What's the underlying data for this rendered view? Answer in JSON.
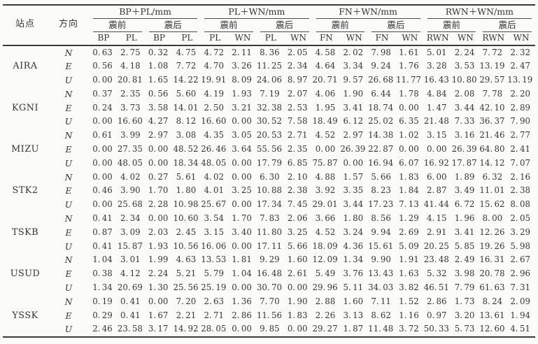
{
  "table": {
    "col_station": "站点",
    "col_direction": "方向",
    "groups": [
      {
        "title": "BP＋PL/mm",
        "pre": "震前",
        "post": "震后",
        "subcols": [
          "BP",
          "PL",
          "BP",
          "PL"
        ]
      },
      {
        "title": "PL＋WN/mm",
        "pre": "震前",
        "post": "震后",
        "subcols": [
          "PL",
          "WN",
          "PL",
          "WN"
        ]
      },
      {
        "title": "FN＋WN/mm",
        "pre": "震前",
        "post": "震后",
        "subcols": [
          "FN",
          "WN",
          "FN",
          "WN"
        ]
      },
      {
        "title": "RWN＋WN/mm",
        "pre": "震前",
        "post": "震后",
        "subcols": [
          "RWN",
          "WN",
          "RWN",
          "WN"
        ]
      }
    ],
    "stations": [
      {
        "name": "AIRA",
        "rows": [
          {
            "dir": "N",
            "values": [
              "0.63",
              "2.75",
              "0.32",
              "4.75",
              "4.72",
              "2.11",
              "8.36",
              "2.05",
              "4.58",
              "2.02",
              "7.98",
              "1.61",
              "5.01",
              "2.24",
              "7.72",
              "2.32"
            ]
          },
          {
            "dir": "E",
            "values": [
              "0.56",
              "4.18",
              "1.08",
              "7.72",
              "4.70",
              "3.26",
              "11.25",
              "2.34",
              "4.64",
              "3.34",
              "9.24",
              "1.76",
              "3.28",
              "3.53",
              "13.19",
              "2.47"
            ]
          },
          {
            "dir": "U",
            "values": [
              "0.00",
              "20.81",
              "1.65",
              "14.22",
              "19.91",
              "8.09",
              "24.06",
              "8.97",
              "20.71",
              "9.57",
              "26.68",
              "11.77",
              "16.43",
              "10.80",
              "29.57",
              "13.19"
            ]
          }
        ]
      },
      {
        "name": "KGNI",
        "rows": [
          {
            "dir": "N",
            "values": [
              "0.37",
              "2.35",
              "0.56",
              "5.60",
              "4.19",
              "1.93",
              "7.19",
              "2.07",
              "4.06",
              "1.90",
              "6.44",
              "1.78",
              "4.84",
              "2.08",
              "7.78",
              "2.20"
            ]
          },
          {
            "dir": "E",
            "values": [
              "0.24",
              "3.73",
              "3.58",
              "14.01",
              "2.50",
              "3.21",
              "32.38",
              "2.53",
              "1.95",
              "3.41",
              "18.74",
              "0.00",
              "1.47",
              "3.44",
              "42.10",
              "2.89"
            ]
          },
          {
            "dir": "U",
            "values": [
              "0.00",
              "16.60",
              "4.27",
              "8.12",
              "16.60",
              "0.00",
              "30.52",
              "7.58",
              "18.49",
              "6.12",
              "25.02",
              "6.35",
              "21.48",
              "7.33",
              "36.37",
              "7.90"
            ]
          }
        ]
      },
      {
        "name": "MIZU",
        "rows": [
          {
            "dir": "N",
            "values": [
              "0.61",
              "3.99",
              "2.97",
              "3.08",
              "4.35",
              "3.05",
              "20.53",
              "2.71",
              "4.52",
              "2.97",
              "14.38",
              "1.02",
              "3.15",
              "3.16",
              "21.46",
              "2.77"
            ]
          },
          {
            "dir": "E",
            "values": [
              "0.00",
              "27.35",
              "0.00",
              "48.52",
              "26.46",
              "3.64",
              "55.56",
              "2.35",
              "0.00",
              "26.39",
              "22.87",
              "0.00",
              "0.00",
              "26.39",
              "64.80",
              "2.41"
            ]
          },
          {
            "dir": "U",
            "values": [
              "0.00",
              "48.05",
              "0.00",
              "18.34",
              "48.05",
              "0.00",
              "17.79",
              "6.85",
              "75.87",
              "0.00",
              "16.94",
              "6.07",
              "16.92",
              "17.87",
              "14.12",
              "7.07"
            ]
          }
        ]
      },
      {
        "name": "STK2",
        "rows": [
          {
            "dir": "N",
            "values": [
              "0.00",
              "4.02",
              "0.27",
              "5.61",
              "4.02",
              "0.00",
              "6.30",
              "2.10",
              "4.88",
              "1.57",
              "5.66",
              "1.83",
              "6.00",
              "1.89",
              "6.32",
              "2.16"
            ]
          },
          {
            "dir": "E",
            "values": [
              "0.46",
              "3.90",
              "1.70",
              "1.80",
              "4.01",
              "3.25",
              "10.88",
              "2.38",
              "3.92",
              "3.35",
              "8.23",
              "1.84",
              "2.87",
              "3.49",
              "11.01",
              "2.38"
            ]
          },
          {
            "dir": "U",
            "values": [
              "0.00",
              "25.68",
              "2.28",
              "10.98",
              "25.67",
              "0.00",
              "17.34",
              "7.45",
              "29.01",
              "3.44",
              "17.23",
              "7.13",
              "41.44",
              "6.72",
              "15.62",
              "8.08"
            ]
          }
        ]
      },
      {
        "name": "TSKB",
        "rows": [
          {
            "dir": "N",
            "values": [
              "0.41",
              "2.34",
              "0.00",
              "10.60",
              "3.54",
              "1.70",
              "7.83",
              "2.06",
              "3.66",
              "1.80",
              "8.56",
              "1.29",
              "4.15",
              "1.96",
              "8.00",
              "2.05"
            ]
          },
          {
            "dir": "E",
            "values": [
              "0.87",
              "3.09",
              "2.03",
              "2.45",
              "3.15",
              "3.40",
              "11.80",
              "3.25",
              "4.52",
              "3.24",
              "9.94",
              "2.69",
              "2.91",
              "3.41",
              "12.26",
              "3.29"
            ]
          },
          {
            "dir": "U",
            "values": [
              "0.41",
              "15.87",
              "1.93",
              "10.56",
              "16.06",
              "0.00",
              "17.11",
              "5.66",
              "18.09",
              "4.36",
              "15.61",
              "5.09",
              "20.25",
              "5.85",
              "19.26",
              "5.98"
            ]
          }
        ]
      },
      {
        "name": "USUD",
        "rows": [
          {
            "dir": "N",
            "values": [
              "1.04",
              "3.01",
              "1.99",
              "4.63",
              "13.53",
              "1.81",
              "9.29",
              "1.60",
              "12.09",
              "1.34",
              "9.90",
              "1.91",
              "23.48",
              "2.49",
              "16.31",
              "2.67"
            ]
          },
          {
            "dir": "E",
            "values": [
              "0.38",
              "4.12",
              "2.24",
              "5.21",
              "5.79",
              "1.04",
              "16.48",
              "2.61",
              "5.49",
              "3.76",
              "13.43",
              "1.63",
              "5.32",
              "3.98",
              "20.78",
              "2.96"
            ]
          },
          {
            "dir": "U",
            "values": [
              "1.34",
              "20.69",
              "1.30",
              "25.56",
              "25.19",
              "0.00",
              "30.70",
              "0.00",
              "29.96",
              "5.11",
              "34.03",
              "3.82",
              "46.51",
              "7.79",
              "61.63",
              "7.31"
            ]
          }
        ]
      },
      {
        "name": "YSSK",
        "rows": [
          {
            "dir": "N",
            "values": [
              "0.19",
              "0.41",
              "0.00",
              "7.20",
              "2.63",
              "1.36",
              "7.70",
              "1.90",
              "2.88",
              "1.60",
              "7.11",
              "1.52",
              "2.86",
              "1.73",
              "8.24",
              "2.09"
            ]
          },
          {
            "dir": "E",
            "values": [
              "0.29",
              "0.41",
              "1.67",
              "2.21",
              "2.71",
              "2.86",
              "11.56",
              "1.83",
              "2.26",
              "3.13",
              "8.62",
              "1.16",
              "0.97",
              "3.20",
              "13.61",
              "1.94"
            ]
          },
          {
            "dir": "U",
            "values": [
              "2.46",
              "23.58",
              "3.17",
              "14.92",
              "28.05",
              "0.00",
              "9.85",
              "0.00",
              "29.27",
              "1.87",
              "11.48",
              "3.72",
              "50.33",
              "5.73",
              "12.60",
              "4.51"
            ]
          }
        ]
      }
    ]
  }
}
